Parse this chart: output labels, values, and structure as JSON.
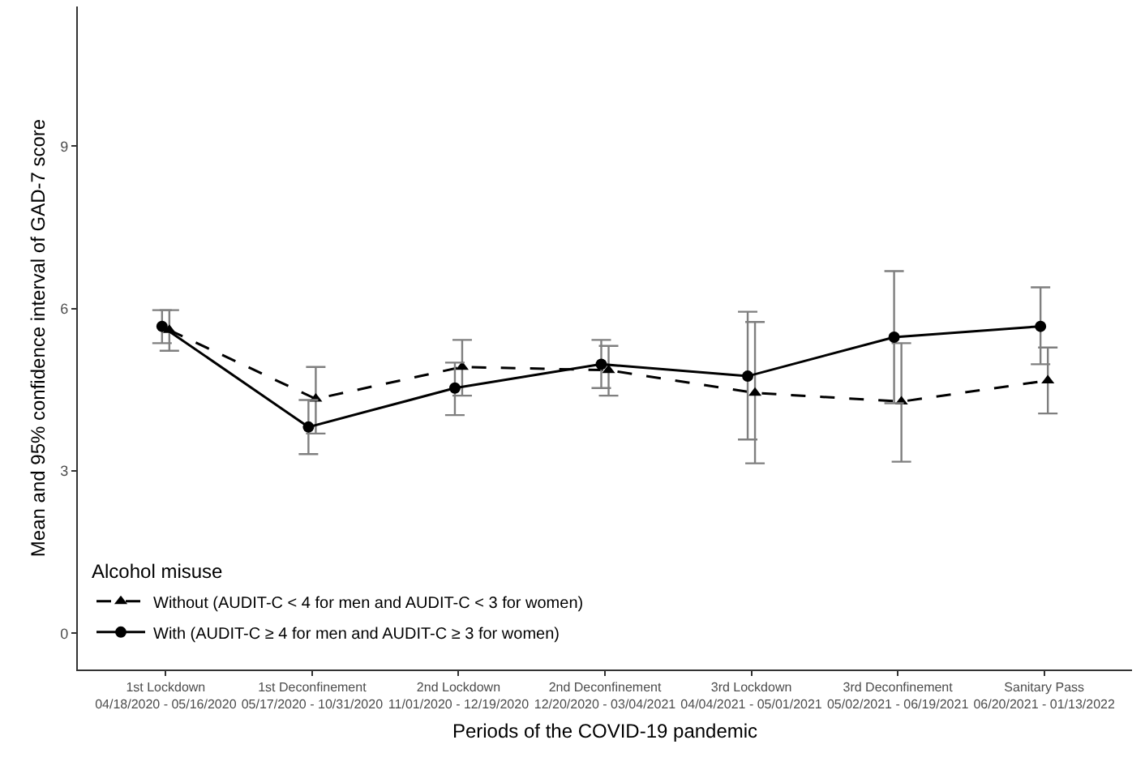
{
  "chart_data": {
    "type": "line",
    "xlabel": "Periods of the COVID-19 pandemic",
    "ylabel": "Mean and 95% confidence interval of GAD-7 score",
    "legend_title": "Alcohol misuse",
    "legend": "bottom left",
    "categories": [
      "1st Lockdown\n04/18/2020 - 05/16/2020",
      "1st Deconfinement\n05/17/2020 - 10/31/2020",
      "2nd Lockdown\n11/01/2020 - 12/19/2020",
      "2nd Deconfinement\n12/20/2020 - 03/04/2021",
      "3rd Lockdown\n04/04/2021 - 05/01/2021",
      "3rd Deconfinement\n05/02/2021 - 06/19/2021",
      "Sanitary Pass\n06/20/2021 - 01/13/2022"
    ],
    "series": [
      {
        "name": "Without (AUDIT-C < 4 for men and AUDIT-C < 3 for women)",
        "color": "#000000",
        "marker": "triangle",
        "line_style": "dashed",
        "values": [
          5.6,
          4.33,
          4.92,
          4.86,
          4.44,
          4.28,
          4.67
        ],
        "errors": [
          [
            5.22,
            5.97
          ],
          [
            3.69,
            4.92
          ],
          [
            4.39,
            5.42
          ],
          [
            4.39,
            5.31
          ],
          [
            3.14,
            5.75
          ],
          [
            3.17,
            5.36
          ],
          [
            4.06,
            5.28
          ]
        ]
      },
      {
        "name": "With (AUDIT-C ≥ 4 for men and AUDIT-C ≥ 3 for women)",
        "color": "#000000",
        "marker": "circle",
        "line_style": "solid",
        "values": [
          5.67,
          3.81,
          4.53,
          4.97,
          4.75,
          5.47,
          5.67
        ],
        "errors": [
          [
            5.36,
            5.97
          ],
          [
            3.31,
            4.31
          ],
          [
            4.03,
            5.0
          ],
          [
            4.53,
            5.42
          ],
          [
            3.58,
            5.94
          ],
          [
            4.25,
            6.69
          ],
          [
            4.97,
            6.39
          ]
        ]
      }
    ],
    "ylim": [
      -0.67,
      11.58
    ],
    "yticks": [
      0,
      3,
      6,
      9
    ],
    "grid": false
  }
}
